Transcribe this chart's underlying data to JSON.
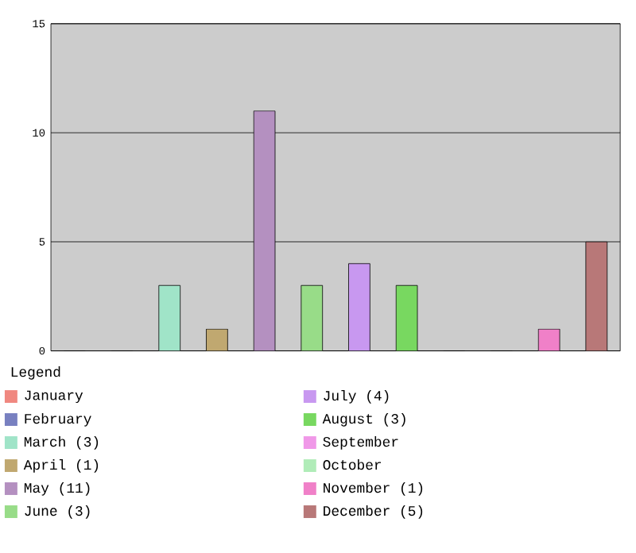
{
  "chart_data": {
    "type": "bar",
    "legend_title": "Legend",
    "categories": [
      null,
      null,
      null,
      null,
      null,
      null,
      null,
      null,
      null,
      null,
      null,
      null
    ],
    "series": [
      {
        "name": "January",
        "color": "#f08880",
        "values": [
          0,
          null,
          null,
          null,
          null,
          null,
          null,
          null,
          null,
          null,
          null,
          null
        ]
      },
      {
        "name": "February",
        "color": "#7880c0",
        "values": [
          null,
          0,
          null,
          null,
          null,
          null,
          null,
          null,
          null,
          null,
          null,
          null
        ]
      },
      {
        "name": "March (3)",
        "color": "#a0e4c8",
        "values": [
          null,
          null,
          3,
          null,
          null,
          null,
          null,
          null,
          null,
          null,
          null,
          null
        ]
      },
      {
        "name": "April (1)",
        "color": "#c0a870",
        "values": [
          null,
          null,
          null,
          1,
          null,
          null,
          null,
          null,
          null,
          null,
          null,
          null
        ]
      },
      {
        "name": "May (11)",
        "color": "#b490c0",
        "values": [
          null,
          null,
          null,
          null,
          11,
          null,
          null,
          null,
          null,
          null,
          null,
          null
        ]
      },
      {
        "name": "June (3)",
        "color": "#98dc88",
        "values": [
          null,
          null,
          null,
          null,
          null,
          3,
          null,
          null,
          null,
          null,
          null,
          null
        ]
      },
      {
        "name": "July (4)",
        "color": "#c898f0",
        "values": [
          null,
          null,
          null,
          null,
          null,
          null,
          4,
          null,
          null,
          null,
          null,
          null
        ]
      },
      {
        "name": "August (3)",
        "color": "#78d860",
        "values": [
          null,
          null,
          null,
          null,
          null,
          null,
          null,
          3,
          null,
          null,
          null,
          null
        ]
      },
      {
        "name": "September",
        "color": "#f098e8",
        "values": [
          null,
          null,
          null,
          null,
          null,
          null,
          null,
          null,
          0,
          null,
          null,
          null
        ]
      },
      {
        "name": "October",
        "color": "#b0ecb8",
        "values": [
          null,
          null,
          null,
          null,
          null,
          null,
          null,
          null,
          null,
          0,
          null,
          null
        ]
      },
      {
        "name": "November (1)",
        "color": "#f080c8",
        "values": [
          null,
          null,
          null,
          null,
          null,
          null,
          null,
          null,
          null,
          null,
          1,
          null
        ]
      },
      {
        "name": "December (5)",
        "color": "#b87878",
        "values": [
          null,
          null,
          null,
          null,
          null,
          null,
          null,
          null,
          null,
          null,
          null,
          5
        ]
      }
    ],
    "ylim": [
      0,
      15
    ],
    "yticks": [
      0,
      5,
      10,
      15
    ],
    "grid": "y",
    "legend": "bottom",
    "tick_labels": "y"
  }
}
